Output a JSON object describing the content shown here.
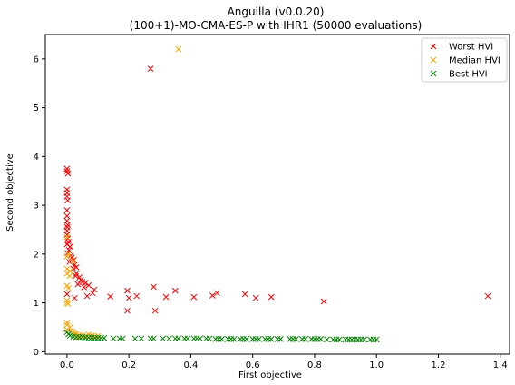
{
  "chart_data": {
    "type": "scatter",
    "title": "Anguilla (v0.0.20)",
    "subtitle": "(100+1)-MO-CMA-ES-P with IHR1 (50000 evaluations)",
    "xlabel": "First objective",
    "ylabel": "Second objective",
    "xlim": [
      -0.07,
      1.43
    ],
    "ylim": [
      -0.05,
      6.5
    ],
    "xticks": [
      "0.0",
      "0.2",
      "0.4",
      "0.6",
      "0.8",
      "1.0",
      "1.2",
      "1.4"
    ],
    "yticks": [
      "0",
      "1",
      "2",
      "3",
      "4",
      "5",
      "6"
    ],
    "grid": false,
    "legend_position": "top-right",
    "marker": "x",
    "series": [
      {
        "name": "Worst HVI",
        "color": "#ff0000",
        "points": [
          [
            0.0,
            3.75
          ],
          [
            0.0,
            3.7
          ],
          [
            0.003,
            3.65
          ],
          [
            0.0,
            3.32
          ],
          [
            0.0,
            3.25
          ],
          [
            0.0,
            3.18
          ],
          [
            0.002,
            3.1
          ],
          [
            0.0,
            2.9
          ],
          [
            0.0,
            2.78
          ],
          [
            0.0,
            2.68
          ],
          [
            0.002,
            2.6
          ],
          [
            0.001,
            2.55
          ],
          [
            0.0,
            2.48
          ],
          [
            0.0,
            2.4
          ],
          [
            0.003,
            2.32
          ],
          [
            0.005,
            2.25
          ],
          [
            0.0,
            2.2
          ],
          [
            0.01,
            2.15
          ],
          [
            0.006,
            2.08
          ],
          [
            0.002,
            2.02
          ],
          [
            0.012,
            1.97
          ],
          [
            0.016,
            1.93
          ],
          [
            0.022,
            1.88
          ],
          [
            0.008,
            1.84
          ],
          [
            0.025,
            1.78
          ],
          [
            0.03,
            1.73
          ],
          [
            0.02,
            1.7
          ],
          [
            0.03,
            1.6
          ],
          [
            0.028,
            1.55
          ],
          [
            0.04,
            1.52
          ],
          [
            0.045,
            1.47
          ],
          [
            0.05,
            1.43
          ],
          [
            0.06,
            1.41
          ],
          [
            0.035,
            1.38
          ],
          [
            0.07,
            1.36
          ],
          [
            0.055,
            1.32
          ],
          [
            0.088,
            1.27
          ],
          [
            0.083,
            1.2
          ],
          [
            0.065,
            1.14
          ],
          [
            0.0,
            1.18
          ],
          [
            0.025,
            1.1
          ],
          [
            0.14,
            1.13
          ],
          [
            0.195,
            1.25
          ],
          [
            0.2,
            1.1
          ],
          [
            0.225,
            1.14
          ],
          [
            0.28,
            1.33
          ],
          [
            0.32,
            1.12
          ],
          [
            0.35,
            1.25
          ],
          [
            0.41,
            1.12
          ],
          [
            0.47,
            1.15
          ],
          [
            0.485,
            1.2
          ],
          [
            0.575,
            1.18
          ],
          [
            0.61,
            1.1
          ],
          [
            0.66,
            1.12
          ],
          [
            0.83,
            1.03
          ],
          [
            1.36,
            1.14
          ],
          [
            0.195,
            0.84
          ],
          [
            0.285,
            0.84
          ],
          [
            0.27,
            5.8
          ]
        ]
      },
      {
        "name": "Median HVI",
        "color": "#ffa500",
        "points": [
          [
            0.0,
            2.35
          ],
          [
            0.005,
            2.0
          ],
          [
            0.0,
            1.95
          ],
          [
            0.02,
            1.85
          ],
          [
            0.0,
            1.7
          ],
          [
            0.01,
            1.65
          ],
          [
            0.0,
            1.6
          ],
          [
            0.008,
            1.55
          ],
          [
            0.0,
            1.35
          ],
          [
            0.005,
            1.3
          ],
          [
            0.0,
            1.05
          ],
          [
            0.0,
            1.0
          ],
          [
            0.003,
            0.98
          ],
          [
            0.0,
            0.6
          ],
          [
            0.0,
            0.55
          ],
          [
            0.01,
            0.5
          ],
          [
            0.0,
            0.45
          ],
          [
            0.015,
            0.42
          ],
          [
            0.02,
            0.4
          ],
          [
            0.025,
            0.38
          ],
          [
            0.03,
            0.36
          ],
          [
            0.04,
            0.34
          ],
          [
            0.05,
            0.33
          ],
          [
            0.06,
            0.32
          ],
          [
            0.07,
            0.35
          ],
          [
            0.08,
            0.33
          ],
          [
            0.09,
            0.31
          ],
          [
            0.1,
            0.32
          ],
          [
            0.035,
            0.3
          ],
          [
            0.36,
            6.2
          ]
        ]
      },
      {
        "name": "Best HVI",
        "color": "#008000",
        "points": [
          [
            0.0,
            0.4
          ],
          [
            0.005,
            0.36
          ],
          [
            0.01,
            0.33
          ],
          [
            0.02,
            0.31
          ],
          [
            0.03,
            0.3
          ],
          [
            0.04,
            0.3
          ],
          [
            0.05,
            0.3
          ],
          [
            0.06,
            0.29
          ],
          [
            0.07,
            0.29
          ],
          [
            0.08,
            0.29
          ],
          [
            0.09,
            0.28
          ],
          [
            0.1,
            0.28
          ],
          [
            0.11,
            0.28
          ],
          [
            0.12,
            0.28
          ],
          [
            0.15,
            0.27
          ],
          [
            0.17,
            0.27
          ],
          [
            0.18,
            0.27
          ],
          [
            0.22,
            0.27
          ],
          [
            0.24,
            0.27
          ],
          [
            0.27,
            0.27
          ],
          [
            0.28,
            0.27
          ],
          [
            0.31,
            0.27
          ],
          [
            0.33,
            0.27
          ],
          [
            0.35,
            0.27
          ],
          [
            0.36,
            0.27
          ],
          [
            0.38,
            0.27
          ],
          [
            0.39,
            0.27
          ],
          [
            0.41,
            0.27
          ],
          [
            0.42,
            0.27
          ],
          [
            0.43,
            0.27
          ],
          [
            0.45,
            0.27
          ],
          [
            0.46,
            0.27
          ],
          [
            0.48,
            0.26
          ],
          [
            0.49,
            0.26
          ],
          [
            0.5,
            0.26
          ],
          [
            0.52,
            0.26
          ],
          [
            0.53,
            0.26
          ],
          [
            0.54,
            0.26
          ],
          [
            0.56,
            0.26
          ],
          [
            0.57,
            0.26
          ],
          [
            0.58,
            0.26
          ],
          [
            0.6,
            0.26
          ],
          [
            0.61,
            0.26
          ],
          [
            0.62,
            0.26
          ],
          [
            0.64,
            0.26
          ],
          [
            0.65,
            0.26
          ],
          [
            0.66,
            0.26
          ],
          [
            0.68,
            0.26
          ],
          [
            0.69,
            0.26
          ],
          [
            0.72,
            0.26
          ],
          [
            0.73,
            0.26
          ],
          [
            0.74,
            0.26
          ],
          [
            0.76,
            0.26
          ],
          [
            0.77,
            0.26
          ],
          [
            0.79,
            0.26
          ],
          [
            0.8,
            0.26
          ],
          [
            0.81,
            0.26
          ],
          [
            0.82,
            0.26
          ],
          [
            0.84,
            0.25
          ],
          [
            0.86,
            0.25
          ],
          [
            0.87,
            0.25
          ],
          [
            0.88,
            0.25
          ],
          [
            0.9,
            0.25
          ],
          [
            0.91,
            0.25
          ],
          [
            0.92,
            0.25
          ],
          [
            0.93,
            0.25
          ],
          [
            0.94,
            0.25
          ],
          [
            0.95,
            0.25
          ],
          [
            0.96,
            0.25
          ],
          [
            0.98,
            0.25
          ],
          [
            0.99,
            0.25
          ],
          [
            1.0,
            0.25
          ]
        ]
      }
    ]
  }
}
